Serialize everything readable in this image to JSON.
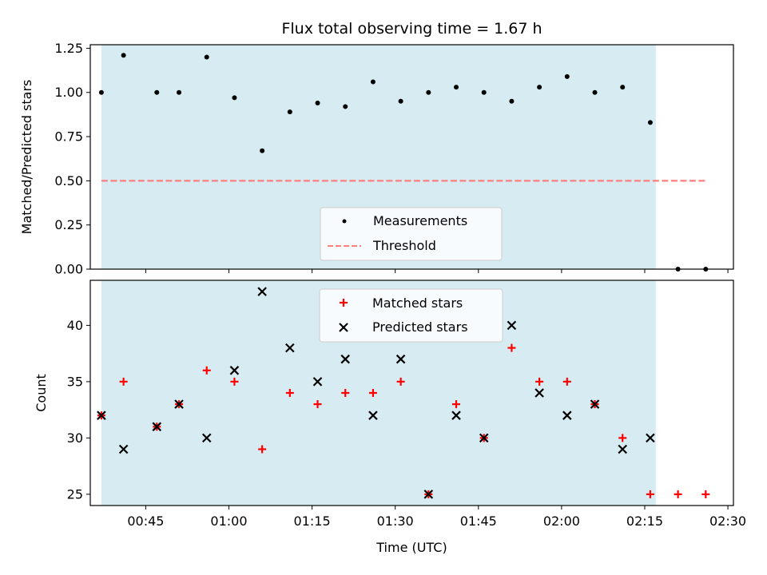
{
  "chart_data": [
    {
      "type": "scatter",
      "title": "Flux total observing time = 1.67 h",
      "xlabel": "",
      "ylabel": "Matched/Predicted stars",
      "xlim": [
        "00:35",
        "02:31"
      ],
      "ylim": [
        0,
        1.27
      ],
      "yticks": [
        0.0,
        0.25,
        0.5,
        0.75,
        1.0,
        1.25
      ],
      "ytick_labels": [
        "0.00",
        "0.25",
        "0.50",
        "0.75",
        "1.00",
        "1.25"
      ],
      "grid": false,
      "legend_position": "lower-center",
      "shaded_span": {
        "from": "00:37",
        "to": "02:17",
        "color": "#add8e6"
      },
      "series": [
        {
          "name": "Measurements",
          "marker": "dot",
          "color": "#000000",
          "x": [
            "00:37",
            "00:41",
            "00:47",
            "00:51",
            "00:56",
            "01:01",
            "01:06",
            "01:11",
            "01:16",
            "01:21",
            "01:26",
            "01:31",
            "01:36",
            "01:41",
            "01:46",
            "01:51",
            "01:56",
            "02:01",
            "02:06",
            "02:11",
            "02:16",
            "02:21",
            "02:26"
          ],
          "y": [
            1.0,
            1.21,
            1.0,
            1.0,
            1.2,
            0.97,
            0.67,
            0.89,
            0.94,
            0.92,
            1.06,
            0.95,
            1.0,
            1.03,
            1.0,
            0.95,
            1.03,
            1.09,
            1.0,
            1.03,
            0.83,
            0.0,
            0.0
          ]
        },
        {
          "name": "Threshold",
          "line": "dashed",
          "color": "#ff7f7f",
          "x": [
            "00:37",
            "02:26"
          ],
          "y": [
            0.5,
            0.5
          ]
        }
      ]
    },
    {
      "type": "scatter",
      "title": "",
      "xlabel": "Time (UTC)",
      "ylabel": "Count",
      "xlim": [
        "00:35",
        "02:31"
      ],
      "ylim": [
        24,
        44
      ],
      "yticks": [
        25,
        30,
        35,
        40
      ],
      "ytick_labels": [
        "25",
        "30",
        "35",
        "40"
      ],
      "xticks": [
        "00:45",
        "01:00",
        "01:15",
        "01:30",
        "01:45",
        "02:00",
        "02:15",
        "02:30"
      ],
      "xtick_labels": [
        "00:45",
        "01:00",
        "01:15",
        "01:30",
        "01:45",
        "02:00",
        "02:15",
        "02:30"
      ],
      "grid": false,
      "legend_position": "upper-center",
      "shaded_span": {
        "from": "00:37",
        "to": "02:17",
        "color": "#add8e6"
      },
      "series": [
        {
          "name": "Matched stars",
          "marker": "plus",
          "color": "#ff0000",
          "x": [
            "00:37",
            "00:41",
            "00:47",
            "00:51",
            "00:56",
            "01:01",
            "01:06",
            "01:11",
            "01:16",
            "01:21",
            "01:26",
            "01:31",
            "01:36",
            "01:41",
            "01:46",
            "01:51",
            "01:56",
            "02:01",
            "02:06",
            "02:11",
            "02:16",
            "02:21",
            "02:26"
          ],
          "y": [
            32,
            35,
            31,
            33,
            36,
            35,
            29,
            34,
            33,
            34,
            34,
            35,
            25,
            33,
            30,
            38,
            35,
            35,
            33,
            30,
            25,
            25,
            25
          ]
        },
        {
          "name": "Predicted stars",
          "marker": "x",
          "color": "#000000",
          "x": [
            "00:37",
            "00:41",
            "00:47",
            "00:51",
            "00:56",
            "01:01",
            "01:06",
            "01:11",
            "01:16",
            "01:21",
            "01:26",
            "01:31",
            "01:36",
            "01:41",
            "01:46",
            "01:51",
            "01:56",
            "02:01",
            "02:06",
            "02:11",
            "02:16"
          ],
          "y": [
            32,
            29,
            31,
            33,
            30,
            36,
            43,
            38,
            35,
            37,
            32,
            37,
            25,
            32,
            30,
            40,
            34,
            32,
            33,
            29,
            30
          ]
        }
      ]
    }
  ]
}
